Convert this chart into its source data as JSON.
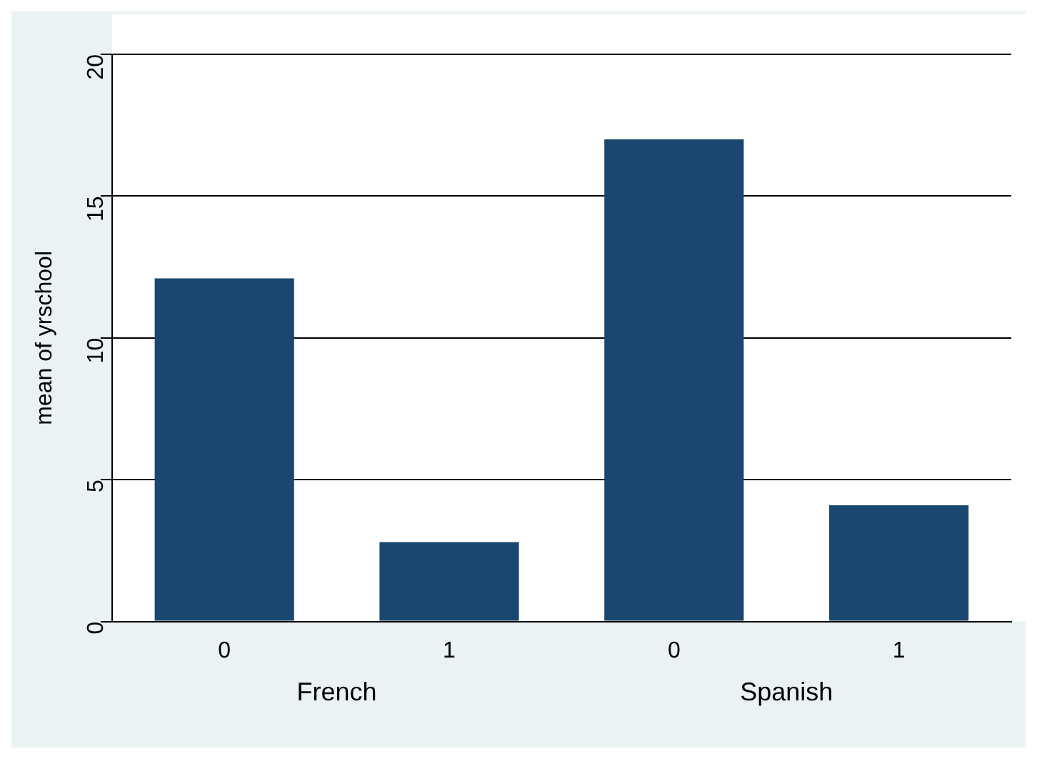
{
  "chart_data": {
    "type": "bar",
    "categories": [
      "0",
      "1",
      "0",
      "1"
    ],
    "values": [
      12.1,
      2.8,
      17.0,
      4.1
    ],
    "color": "#1a476f",
    "ylabel": "mean of yrschool",
    "ylim": [
      0,
      20
    ],
    "yticks": [
      0,
      5,
      10,
      15,
      20
    ],
    "grid": "y",
    "annotations": [
      "French",
      "Spanish"
    ]
  }
}
